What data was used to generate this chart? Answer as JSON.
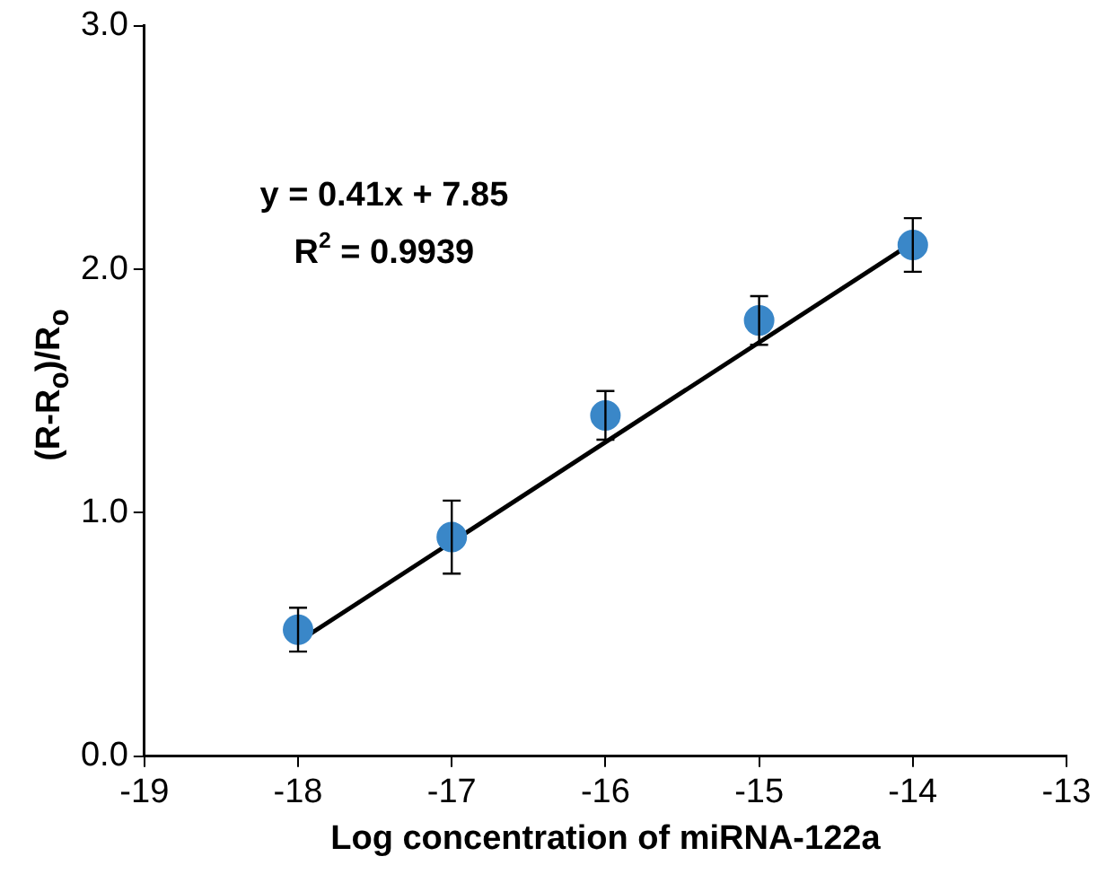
{
  "chart_data": {
    "type": "scatter",
    "xlabel": "Log concentration of miRNA-122a",
    "ylabel": "(R-R$_{o}$)/R$_{o}$",
    "annotations": [
      "y = 0.41x + 7.85",
      "R$^{2}$ = 0.9939"
    ],
    "xlim": [
      -19,
      -13
    ],
    "xticks": [
      -19,
      -18,
      -17,
      -16,
      -15,
      -14,
      -13
    ],
    "ylim": [
      0,
      3
    ],
    "yticks": [
      {
        "value": 0,
        "label": "0.0"
      },
      {
        "value": 1,
        "label": "1.0"
      },
      {
        "value": 2,
        "label": "2.0"
      },
      {
        "value": 3,
        "label": "3.0"
      }
    ],
    "grid": false,
    "legend": false,
    "marker": "circle",
    "series": [
      {
        "color": "#3a87c8",
        "x": [
          -18,
          -17,
          -16,
          -15,
          -14
        ],
        "values": [
          0.52,
          0.9,
          1.4,
          1.79,
          2.1
        ],
        "errors": [
          0.09,
          0.15,
          0.1,
          0.1,
          0.11
        ]
      },
      {
        "type": "line",
        "color": "#000000",
        "x": [
          -18,
          -14
        ],
        "values": [
          0.47,
          2.11
        ],
        "marker": "none",
        "line_style": "solid"
      }
    ]
  }
}
